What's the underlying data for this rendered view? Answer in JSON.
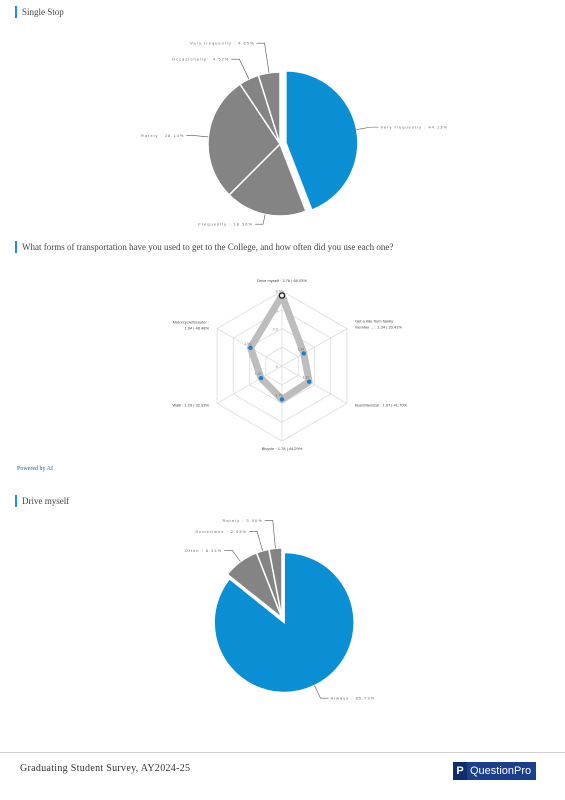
{
  "sections": [
    {
      "title": "Single Stop"
    },
    {
      "title": "What forms of transportation have you used to get to the College, and how often did you use each one?"
    },
    {
      "title": "Drive myself"
    }
  ],
  "powered_by": "Powered by AI",
  "footer": {
    "survey_name": "Graduating Student Survey, AY2024-25",
    "logo_text": "QuestionPro",
    "logo_mark": "P"
  },
  "colors": {
    "accent": "#1e90d6",
    "highlight": "#0a8fd4",
    "gray": "#848484",
    "radar_fill": "#bdbdbd",
    "radar_point": "#1a7fc9"
  },
  "chart_data": [
    {
      "type": "pie",
      "slices": [
        {
          "label": "Very frequently",
          "value": 44.13,
          "color": "#0a8fd4"
        },
        {
          "label": "Frequently",
          "value": 18.36,
          "color": "#848484"
        },
        {
          "label": "Rarely",
          "value": 28.14,
          "color": "#848484"
        },
        {
          "label": "Occasionally",
          "value": 4.52,
          "color": "#848484"
        },
        {
          "label": "Very frequently",
          "value": 4.85,
          "color": "#848484"
        }
      ],
      "labels": [
        "Very frequently : 44.13%",
        "Frequently : 18.36%",
        "Rarely : 28.14%",
        "Occasionally : 4.52%",
        "Very frequently : 4.85%"
      ]
    },
    {
      "type": "radar",
      "axes": [
        {
          "label": "Drive myself : 3.76 | 69.03%",
          "value": 3.76,
          "point_label": "3.76"
        },
        {
          "label": "Get a ride from family member ... : 1.34 | 33.41%",
          "value": 1.34,
          "point_label": "1.34"
        },
        {
          "label": "Bus/Streetcar : 1.67 | 41.70%",
          "value": 1.67,
          "point_label": "1.67"
        },
        {
          "label": "Bicycle : 1.78 | 44.29%",
          "value": 1.78,
          "point_label": "1.78"
        },
        {
          "label": "Walk : 1.29 | 32.33%",
          "value": 1.29,
          "point_label": "1.29"
        },
        {
          "label": "Motorcycle/Scooter : 1.94 | 48.48%",
          "value": 1.94,
          "point_label": "1.94"
        }
      ],
      "rmax": 4,
      "tick_labels": [
        "0",
        "2.0",
        "3.0"
      ]
    },
    {
      "type": "pie",
      "slices": [
        {
          "label": "Always",
          "value": 85.73,
          "color": "#0a8fd4"
        },
        {
          "label": "Often",
          "value": 8.34,
          "color": "#848484"
        },
        {
          "label": "Sometimes",
          "value": 2.93,
          "color": "#848484"
        },
        {
          "label": "Rarely",
          "value": 3.0,
          "color": "#848484"
        }
      ],
      "labels": [
        "Always : 85.73%",
        "Often : 8.34%",
        "Sometimes : 2.93%",
        "Rarely : 3.00%"
      ]
    }
  ]
}
